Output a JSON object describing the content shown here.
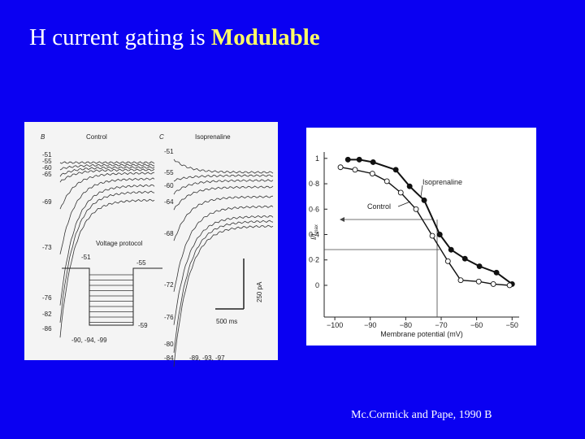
{
  "title": {
    "text": "H current gating is ",
    "emphasis": "Modulable"
  },
  "citation": "Mc.Cormick and Pape, 1990 B",
  "figure_left": {
    "panel_b": {
      "label": "B",
      "title": "Control",
      "levels": [
        "-51",
        "-55",
        "-60",
        "-65",
        "-69",
        "-73",
        "-76",
        "-82",
        "-86"
      ],
      "protocol": {
        "title": "Voltage protocol",
        "start": "-51",
        "hold": "-55",
        "end": "-59",
        "steps": "-90, -94, -99"
      }
    },
    "panel_c": {
      "label": "C",
      "title": "Isoprenaline",
      "levels": [
        "-51",
        "-55",
        "-60",
        "-64",
        "-68",
        "-72",
        "-76",
        "-80",
        "-84"
      ],
      "steps": "-89, -93, -97",
      "scale_current": "250 pA",
      "scale_time": "500 ms"
    }
  },
  "chart_data": {
    "type": "scatter",
    "xlabel": "Membrane potential (mV)",
    "ylabel": {
      "main": "I/I",
      "sub": "max"
    },
    "xlim": [
      -103,
      -48
    ],
    "ylim": [
      -0.25,
      1.05
    ],
    "xticks": [
      {
        "value": -100,
        "label": "−100"
      },
      {
        "value": -90,
        "label": "−90"
      },
      {
        "value": -80,
        "label": "−80"
      },
      {
        "value": -70,
        "label": "−70"
      },
      {
        "value": -60,
        "label": "−60"
      },
      {
        "value": -50,
        "label": "−50"
      }
    ],
    "yticks": [
      0,
      {
        "value": 0.2,
        "label": "0·2"
      },
      {
        "value": 0.4,
        "label": "0·4"
      },
      {
        "value": 0.6,
        "label": "0·6"
      },
      {
        "value": 0.8,
        "label": "0·8"
      },
      1
    ],
    "series": [
      {
        "name": "Isoprenaline",
        "color": "#111111",
        "marker": "filled",
        "x": [
          -96.3,
          -93.1,
          -89.2,
          -82.8,
          -78.9,
          -74.8,
          -70.4,
          -67.2,
          -63.3,
          -59.2,
          -54.4,
          -50
        ],
        "values": [
          0.99,
          0.99,
          0.97,
          0.91,
          0.78,
          0.67,
          0.4,
          0.28,
          0.21,
          0.15,
          0.1,
          0.01
        ]
      },
      {
        "name": "Control",
        "color": "#111111",
        "marker": "open",
        "x": [
          -98.4,
          -94.3,
          -89.4,
          -85.3,
          -81.4,
          -77.1,
          -72.5,
          -68.1,
          -64.5,
          -59.4,
          -55.3,
          -50.7
        ],
        "values": [
          0.93,
          0.91,
          0.88,
          0.82,
          0.73,
          0.6,
          0.39,
          0.19,
          0.04,
          0.03,
          0.01,
          0
        ]
      }
    ]
  }
}
